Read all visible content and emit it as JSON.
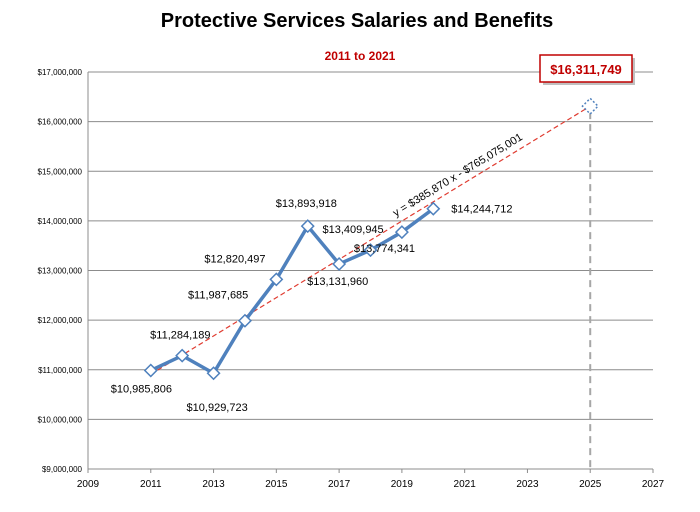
{
  "chart_data": {
    "type": "line",
    "title": "Protective Services Salaries and Benefits",
    "subtitle": "2011 to 2021",
    "xlabel": "",
    "ylabel": "",
    "xlim": [
      2009,
      2027
    ],
    "x_ticks": [
      2009,
      2011,
      2013,
      2015,
      2017,
      2019,
      2021,
      2023,
      2025,
      2027
    ],
    "ylim": [
      9000000,
      17000000
    ],
    "y_ticks": [
      9000000,
      10000000,
      11000000,
      12000000,
      13000000,
      14000000,
      15000000,
      16000000,
      17000000
    ],
    "y_tick_labels": [
      "$9,000,000",
      "$10,000,000",
      "$11,000,000",
      "$12,000,000",
      "$13,000,000",
      "$14,000,000",
      "$15,000,000",
      "$16,000,000",
      "$17,000,000"
    ],
    "grid": "horizontal",
    "series": [
      {
        "x": [
          2011,
          2012,
          2013,
          2014,
          2015,
          2016,
          2017,
          2018,
          2019,
          2020
        ],
        "values": [
          10985806,
          11284189,
          10929723,
          11987685,
          12820497,
          13893918,
          13131960,
          13409945,
          13774341,
          14244712
        ],
        "labels": [
          "$10,985,806",
          "$11,284,189",
          "$10,929,723",
          "$11,987,685",
          "$12,820,497",
          "$13,893,918",
          "$13,131,960",
          "$13,409,945",
          "$13,774,341",
          "$14,244,712"
        ],
        "color": "#4f81bd"
      }
    ],
    "trendline": {
      "equation": "y = $385,870 x - $765,075,001",
      "slope": 385870,
      "intercept": -765075001,
      "x_range": [
        2011,
        2025
      ],
      "color": "#e03c31"
    },
    "projection": {
      "x": 2025,
      "value": 16311749,
      "label": "$16,311,749",
      "color": "#c00000"
    }
  }
}
